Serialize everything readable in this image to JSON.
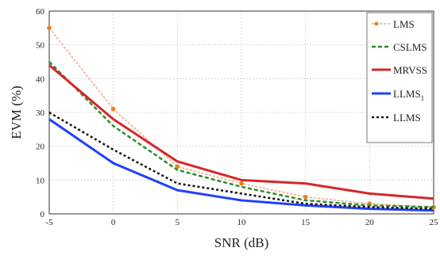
{
  "chart_data": {
    "type": "line",
    "xlabel": "SNR (dB)",
    "ylabel": "EVM (%)",
    "xlim": [
      -5,
      25
    ],
    "ylim": [
      0,
      60
    ],
    "x_ticks": [
      "-5",
      "0",
      "5",
      "10",
      "15",
      "20",
      "25"
    ],
    "y_ticks": [
      "0",
      "10",
      "20",
      "30",
      "40",
      "50",
      "60"
    ],
    "grid": true,
    "legend_position": "top-right",
    "x": [
      -5,
      0,
      5,
      10,
      15,
      20,
      25
    ],
    "series": [
      {
        "name": "LMS",
        "name_sub": "",
        "color": "#f4a582",
        "marker_color": "#e8821e",
        "style": "dotted-marker",
        "values": [
          55,
          31,
          14,
          9,
          5,
          3,
          2
        ]
      },
      {
        "name": "CSLMS",
        "name_sub": "",
        "color": "#2e8b2e",
        "style": "dash",
        "values": [
          45,
          26,
          13,
          8,
          4,
          2.5,
          2
        ]
      },
      {
        "name": "MRVSS",
        "name_sub": "",
        "color": "#d62728",
        "style": "solid",
        "values": [
          44,
          28,
          15.5,
          10,
          9,
          6,
          4.5
        ]
      },
      {
        "name": "LLMS",
        "name_sub": "1",
        "color": "#1f3fff",
        "style": "solid",
        "values": [
          28,
          15,
          7,
          4,
          2.5,
          1.5,
          1
        ]
      },
      {
        "name": "LLMS",
        "name_sub": "",
        "color": "#111111",
        "style": "dot",
        "values": [
          30,
          19,
          9,
          6,
          3,
          2,
          1.5
        ]
      }
    ]
  }
}
